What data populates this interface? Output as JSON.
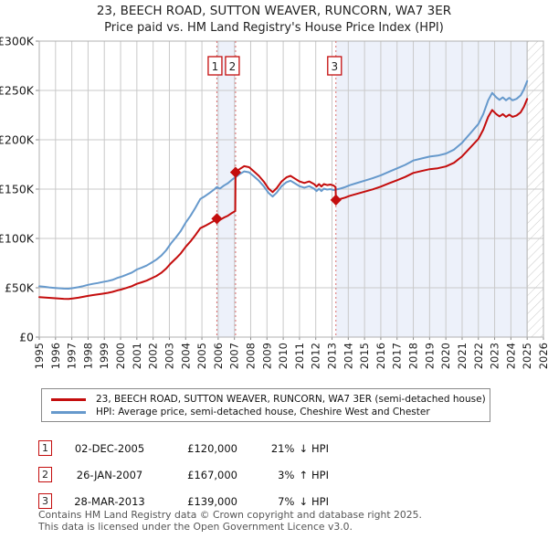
{
  "chart_data": {
    "type": "line",
    "title": "23, BEECH ROAD, SUTTON WEAVER, RUNCORN, WA7 3ER",
    "subtitle": "Price paid vs. HM Land Registry's House Price Index (HPI)",
    "x_range": [
      1995,
      2026
    ],
    "y_range": [
      0,
      300
    ],
    "grid": true,
    "legend_position": "below",
    "y_ticks": [
      {
        "value": 0,
        "label": "£0"
      },
      {
        "value": 50,
        "label": "£50K"
      },
      {
        "value": 100,
        "label": "£100K"
      },
      {
        "value": 150,
        "label": "£150K"
      },
      {
        "value": 200,
        "label": "£200K"
      },
      {
        "value": 250,
        "label": "£250K"
      },
      {
        "value": 300,
        "label": "£300K"
      }
    ],
    "bands": [
      [
        2005.92,
        2007.07
      ],
      [
        2013.24,
        2025.0
      ]
    ],
    "hatch_from": 2025.0,
    "colors": {
      "red": "#c40d0d",
      "blue": "#6699cc",
      "band": "#edf1fa",
      "grid": "#c9c9c9",
      "dashed": "#d96b6b",
      "hatch": "#c9c9c9",
      "axis": "#b0b0b0"
    },
    "markers": [
      {
        "n": "1",
        "year": 2005.92,
        "price": 120,
        "date": "02-DEC-2005"
      },
      {
        "n": "2",
        "year": 2007.07,
        "price": 167,
        "date": "26-JAN-2007"
      },
      {
        "n": "3",
        "year": 2013.24,
        "price": 139,
        "date": "28-MAR-2013"
      }
    ],
    "series": [
      {
        "id": "property",
        "name": "23, BEECH ROAD, SUTTON WEAVER, RUNCORN, WA7 3ER (semi-detached house)",
        "color": "#c40d0d",
        "points": [
          [
            1995.0,
            40.6
          ],
          [
            1995.3,
            40.2
          ],
          [
            1995.6,
            39.8
          ],
          [
            1995.9,
            39.4
          ],
          [
            1996.2,
            39.1
          ],
          [
            1996.5,
            38.8
          ],
          [
            1996.8,
            38.7
          ],
          [
            1997.1,
            39.3
          ],
          [
            1997.4,
            39.9
          ],
          [
            1997.7,
            40.8
          ],
          [
            1998.0,
            41.8
          ],
          [
            1998.3,
            42.6
          ],
          [
            1998.6,
            43.2
          ],
          [
            1998.9,
            44.0
          ],
          [
            1999.2,
            44.8
          ],
          [
            1999.5,
            45.8
          ],
          [
            1999.8,
            47.3
          ],
          [
            2000.1,
            48.5
          ],
          [
            2000.4,
            50.1
          ],
          [
            2000.7,
            51.7
          ],
          [
            2001.0,
            54.0
          ],
          [
            2001.3,
            55.6
          ],
          [
            2001.6,
            57.2
          ],
          [
            2001.9,
            59.6
          ],
          [
            2002.2,
            61.9
          ],
          [
            2002.5,
            65.1
          ],
          [
            2002.8,
            69.4
          ],
          [
            2003.1,
            74.9
          ],
          [
            2003.4,
            79.7
          ],
          [
            2003.7,
            84.8
          ],
          [
            2004.0,
            91.5
          ],
          [
            2004.3,
            97.0
          ],
          [
            2004.6,
            103.3
          ],
          [
            2004.9,
            110.4
          ],
          [
            2005.2,
            112.8
          ],
          [
            2005.5,
            115.6
          ],
          [
            2005.75,
            117.9
          ],
          [
            2005.92,
            120.0
          ],
          [
            2006.1,
            118.8
          ],
          [
            2006.35,
            121.1
          ],
          [
            2006.6,
            123.1
          ],
          [
            2006.85,
            125.8
          ],
          [
            2007.05,
            127.8
          ],
          [
            2007.07,
            167.0
          ],
          [
            2007.3,
            170.1
          ],
          [
            2007.6,
            173.2
          ],
          [
            2007.9,
            172.2
          ],
          [
            2008.2,
            168.0
          ],
          [
            2008.5,
            163.4
          ],
          [
            2008.8,
            157.8
          ],
          [
            2009.1,
            150.5
          ],
          [
            2009.35,
            146.9
          ],
          [
            2009.6,
            151.0
          ],
          [
            2009.9,
            157.8
          ],
          [
            2010.2,
            161.9
          ],
          [
            2010.45,
            163.4
          ],
          [
            2010.7,
            160.8
          ],
          [
            2011.0,
            157.8
          ],
          [
            2011.3,
            156.2
          ],
          [
            2011.6,
            157.8
          ],
          [
            2011.9,
            155.1
          ],
          [
            2012.05,
            152.6
          ],
          [
            2012.2,
            155.1
          ],
          [
            2012.35,
            152.6
          ],
          [
            2012.5,
            155.1
          ],
          [
            2012.7,
            154.1
          ],
          [
            2012.9,
            154.6
          ],
          [
            2013.1,
            153.6
          ],
          [
            2013.22,
            152.0
          ],
          [
            2013.24,
            139.0
          ],
          [
            2013.5,
            140.0
          ],
          [
            2013.8,
            141.4
          ],
          [
            2014.1,
            143.2
          ],
          [
            2014.5,
            145.1
          ],
          [
            2015.0,
            147.4
          ],
          [
            2015.5,
            149.7
          ],
          [
            2016.0,
            152.5
          ],
          [
            2016.5,
            155.8
          ],
          [
            2017.0,
            159.0
          ],
          [
            2017.5,
            162.3
          ],
          [
            2018.0,
            166.4
          ],
          [
            2018.5,
            168.3
          ],
          [
            2019.0,
            170.2
          ],
          [
            2019.5,
            171.1
          ],
          [
            2020.0,
            173.0
          ],
          [
            2020.5,
            176.7
          ],
          [
            2021.0,
            183.2
          ],
          [
            2021.5,
            192.0
          ],
          [
            2022.0,
            200.9
          ],
          [
            2022.3,
            210.2
          ],
          [
            2022.6,
            223.2
          ],
          [
            2022.85,
            230.2
          ],
          [
            2023.1,
            226.0
          ],
          [
            2023.3,
            223.7
          ],
          [
            2023.5,
            226.0
          ],
          [
            2023.7,
            223.2
          ],
          [
            2023.9,
            225.5
          ],
          [
            2024.1,
            223.2
          ],
          [
            2024.35,
            224.6
          ],
          [
            2024.6,
            227.9
          ],
          [
            2024.8,
            233.4
          ],
          [
            2025.0,
            241.4
          ]
        ]
      },
      {
        "id": "hpi",
        "name": "HPI: Average price, semi-detached house, Cheshire West and Chester",
        "color": "#6699cc",
        "points": [
          [
            1995.0,
            51.5
          ],
          [
            1995.3,
            51.0
          ],
          [
            1995.6,
            50.4
          ],
          [
            1995.9,
            49.9
          ],
          [
            1996.2,
            49.5
          ],
          [
            1996.5,
            49.2
          ],
          [
            1996.8,
            49.1
          ],
          [
            1997.1,
            49.8
          ],
          [
            1997.4,
            50.6
          ],
          [
            1997.7,
            51.7
          ],
          [
            1998.0,
            53.0
          ],
          [
            1998.3,
            54.0
          ],
          [
            1998.6,
            54.8
          ],
          [
            1998.9,
            55.8
          ],
          [
            1999.2,
            56.8
          ],
          [
            1999.5,
            58.0
          ],
          [
            1999.8,
            60.0
          ],
          [
            2000.1,
            61.5
          ],
          [
            2000.4,
            63.5
          ],
          [
            2000.7,
            65.5
          ],
          [
            2001.0,
            68.5
          ],
          [
            2001.3,
            70.5
          ],
          [
            2001.6,
            72.5
          ],
          [
            2001.9,
            75.5
          ],
          [
            2002.2,
            78.5
          ],
          [
            2002.5,
            82.5
          ],
          [
            2002.8,
            88.0
          ],
          [
            2003.1,
            95.0
          ],
          [
            2003.4,
            101.0
          ],
          [
            2003.7,
            107.5
          ],
          [
            2004.0,
            116.0
          ],
          [
            2004.3,
            123.0
          ],
          [
            2004.6,
            131.0
          ],
          [
            2004.9,
            140.0
          ],
          [
            2005.2,
            143.0
          ],
          [
            2005.5,
            146.5
          ],
          [
            2005.75,
            149.5
          ],
          [
            2005.92,
            152.0
          ],
          [
            2006.1,
            150.5
          ],
          [
            2006.35,
            153.5
          ],
          [
            2006.6,
            156.0
          ],
          [
            2006.85,
            159.5
          ],
          [
            2007.07,
            162.0
          ],
          [
            2007.3,
            165.0
          ],
          [
            2007.6,
            168.0
          ],
          [
            2007.9,
            167.0
          ],
          [
            2008.2,
            163.0
          ],
          [
            2008.5,
            158.5
          ],
          [
            2008.8,
            153.0
          ],
          [
            2009.1,
            146.0
          ],
          [
            2009.35,
            142.5
          ],
          [
            2009.6,
            146.5
          ],
          [
            2009.9,
            153.0
          ],
          [
            2010.2,
            157.0
          ],
          [
            2010.45,
            158.5
          ],
          [
            2010.7,
            156.0
          ],
          [
            2011.0,
            153.0
          ],
          [
            2011.3,
            151.5
          ],
          [
            2011.6,
            153.0
          ],
          [
            2011.9,
            150.5
          ],
          [
            2012.05,
            148.0
          ],
          [
            2012.2,
            150.5
          ],
          [
            2012.35,
            148.0
          ],
          [
            2012.5,
            150.5
          ],
          [
            2012.7,
            149.5
          ],
          [
            2012.9,
            150.0
          ],
          [
            2013.1,
            149.0
          ],
          [
            2013.24,
            149.5
          ],
          [
            2013.5,
            150.5
          ],
          [
            2013.8,
            152.0
          ],
          [
            2014.1,
            154.0
          ],
          [
            2014.5,
            156.0
          ],
          [
            2015.0,
            158.5
          ],
          [
            2015.5,
            161.0
          ],
          [
            2016.0,
            164.0
          ],
          [
            2016.5,
            167.5
          ],
          [
            2017.0,
            171.0
          ],
          [
            2017.5,
            174.5
          ],
          [
            2018.0,
            179.0
          ],
          [
            2018.5,
            181.0
          ],
          [
            2019.0,
            183.0
          ],
          [
            2019.5,
            184.0
          ],
          [
            2020.0,
            186.0
          ],
          [
            2020.5,
            190.0
          ],
          [
            2021.0,
            197.0
          ],
          [
            2021.5,
            206.5
          ],
          [
            2022.0,
            216.0
          ],
          [
            2022.3,
            226.0
          ],
          [
            2022.6,
            240.0
          ],
          [
            2022.85,
            247.5
          ],
          [
            2023.1,
            243.0
          ],
          [
            2023.3,
            240.5
          ],
          [
            2023.5,
            243.0
          ],
          [
            2023.7,
            240.0
          ],
          [
            2023.9,
            242.5
          ],
          [
            2024.1,
            240.0
          ],
          [
            2024.35,
            241.5
          ],
          [
            2024.6,
            245.0
          ],
          [
            2024.8,
            251.0
          ],
          [
            2025.0,
            259.5
          ]
        ]
      }
    ]
  },
  "transactions": [
    {
      "num": "1",
      "date": "02-DEC-2005",
      "price": "£120,000",
      "pct": "21%",
      "arrow": "↓",
      "vs": "HPI"
    },
    {
      "num": "2",
      "date": "26-JAN-2007",
      "price": "£167,000",
      "pct": "3%",
      "arrow": "↑",
      "vs": "HPI"
    },
    {
      "num": "3",
      "date": "28-MAR-2013",
      "price": "£139,000",
      "pct": "7%",
      "arrow": "↓",
      "vs": "HPI"
    }
  ],
  "footer": {
    "line1": "Contains HM Land Registry data © Crown copyright and database right 2025.",
    "line2": "This data is licensed under the Open Government Licence v3.0."
  }
}
